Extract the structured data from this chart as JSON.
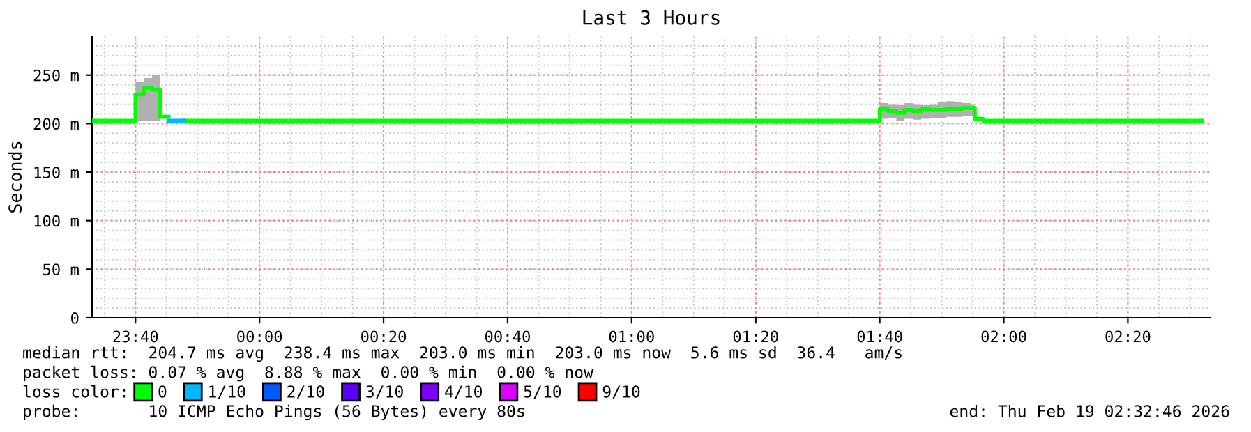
{
  "chart_data": {
    "type": "step",
    "title": "Last 3 Hours",
    "ylabel": "Seconds",
    "xlim": [
      "2026-02-18T23:33:00",
      "2026-02-19T02:33:20"
    ],
    "xticks": [
      {
        "value": "2026-02-18T23:40",
        "label": "23:40"
      },
      {
        "value": "2026-02-19T00:00",
        "label": "00:00"
      },
      {
        "value": "2026-02-19T00:20",
        "label": "00:20"
      },
      {
        "value": "2026-02-19T00:40",
        "label": "00:40"
      },
      {
        "value": "2026-02-19T01:00",
        "label": "01:00"
      },
      {
        "value": "2026-02-19T01:20",
        "label": "01:20"
      },
      {
        "value": "2026-02-19T01:40",
        "label": "01:40"
      },
      {
        "value": "2026-02-19T02:00",
        "label": "02:00"
      },
      {
        "value": "2026-02-19T02:20",
        "label": "02:20"
      }
    ],
    "ylim": [
      0,
      290
    ],
    "yticks": [
      0,
      {
        "value": 50,
        "label": "50 m"
      },
      {
        "value": 100,
        "label": "100 m"
      },
      {
        "value": 150,
        "label": "150 m"
      },
      {
        "value": 200,
        "label": "200 m"
      },
      {
        "value": 250,
        "label": "250 m"
      }
    ],
    "grid": true,
    "legend": "bottom left",
    "line_style": "solid",
    "marker": "none",
    "series": [
      {
        "name": "0",
        "color": "#00ff00",
        "x": [
          "2026-02-18T23:33:00",
          "2026-02-18T23:40:00",
          "2026-02-18T23:41:20",
          "2026-02-18T23:42:40",
          "2026-02-18T23:44:00",
          "2026-02-18T23:45:20",
          "2026-02-18T23:47:50",
          "2026-02-19T01:40:00",
          "2026-02-19T01:41:20",
          "2026-02-19T01:42:40",
          "2026-02-19T01:44:00",
          "2026-02-19T01:45:20",
          "2026-02-19T01:46:40",
          "2026-02-19T01:48:00",
          "2026-02-19T01:49:20",
          "2026-02-19T01:50:40",
          "2026-02-19T01:52:00",
          "2026-02-19T01:53:20",
          "2026-02-19T01:54:40",
          "2026-02-19T01:55:20",
          "2026-02-19T01:56:40",
          "2026-02-19T02:32:00"
        ],
        "values": [
          203,
          230,
          237,
          235,
          207,
          null,
          203,
          215,
          213,
          211,
          214,
          213,
          215,
          214,
          214,
          215,
          215,
          216,
          216,
          205,
          203,
          203
        ],
        "lower": [
          203,
          203,
          203,
          203,
          203,
          null,
          203,
          205,
          206,
          203,
          205,
          204,
          205,
          206,
          206,
          207,
          207,
          208,
          208,
          203,
          203,
          203
        ],
        "upper": [
          203,
          243,
          247,
          250,
          207,
          null,
          203,
          221,
          220,
          219,
          221,
          220,
          219,
          220,
          222,
          223,
          222,
          221,
          220,
          205,
          203,
          203
        ]
      },
      {
        "name": "1/10",
        "color": "#00b8ff",
        "x": [
          "2026-02-18T23:45:20",
          "2026-02-18T23:47:50"
        ],
        "values": [
          203,
          203
        ]
      },
      {
        "name": "2/10",
        "color": "#0059ff"
      },
      {
        "name": "3/10",
        "color": "#5e00ff"
      },
      {
        "name": "4/10",
        "color": "#7e00ff"
      },
      {
        "name": "5/10",
        "color": "#dd00ff"
      },
      {
        "name": "9/10",
        "color": "#ff0000"
      }
    ],
    "annotations": [
      "median rtt:  204.7 ms avg  238.4 ms max  203.0 ms min  203.0 ms now  5.6 ms sd  36.4   am/s",
      "packet loss: 0.07 % avg  8.88 % max  0.00 % min  0.00 % now",
      "loss color:",
      "probe:       10 ICMP Echo Pings (56 Bytes) every 80s",
      "end: Thu Feb 19 02:32:46 2026"
    ]
  }
}
